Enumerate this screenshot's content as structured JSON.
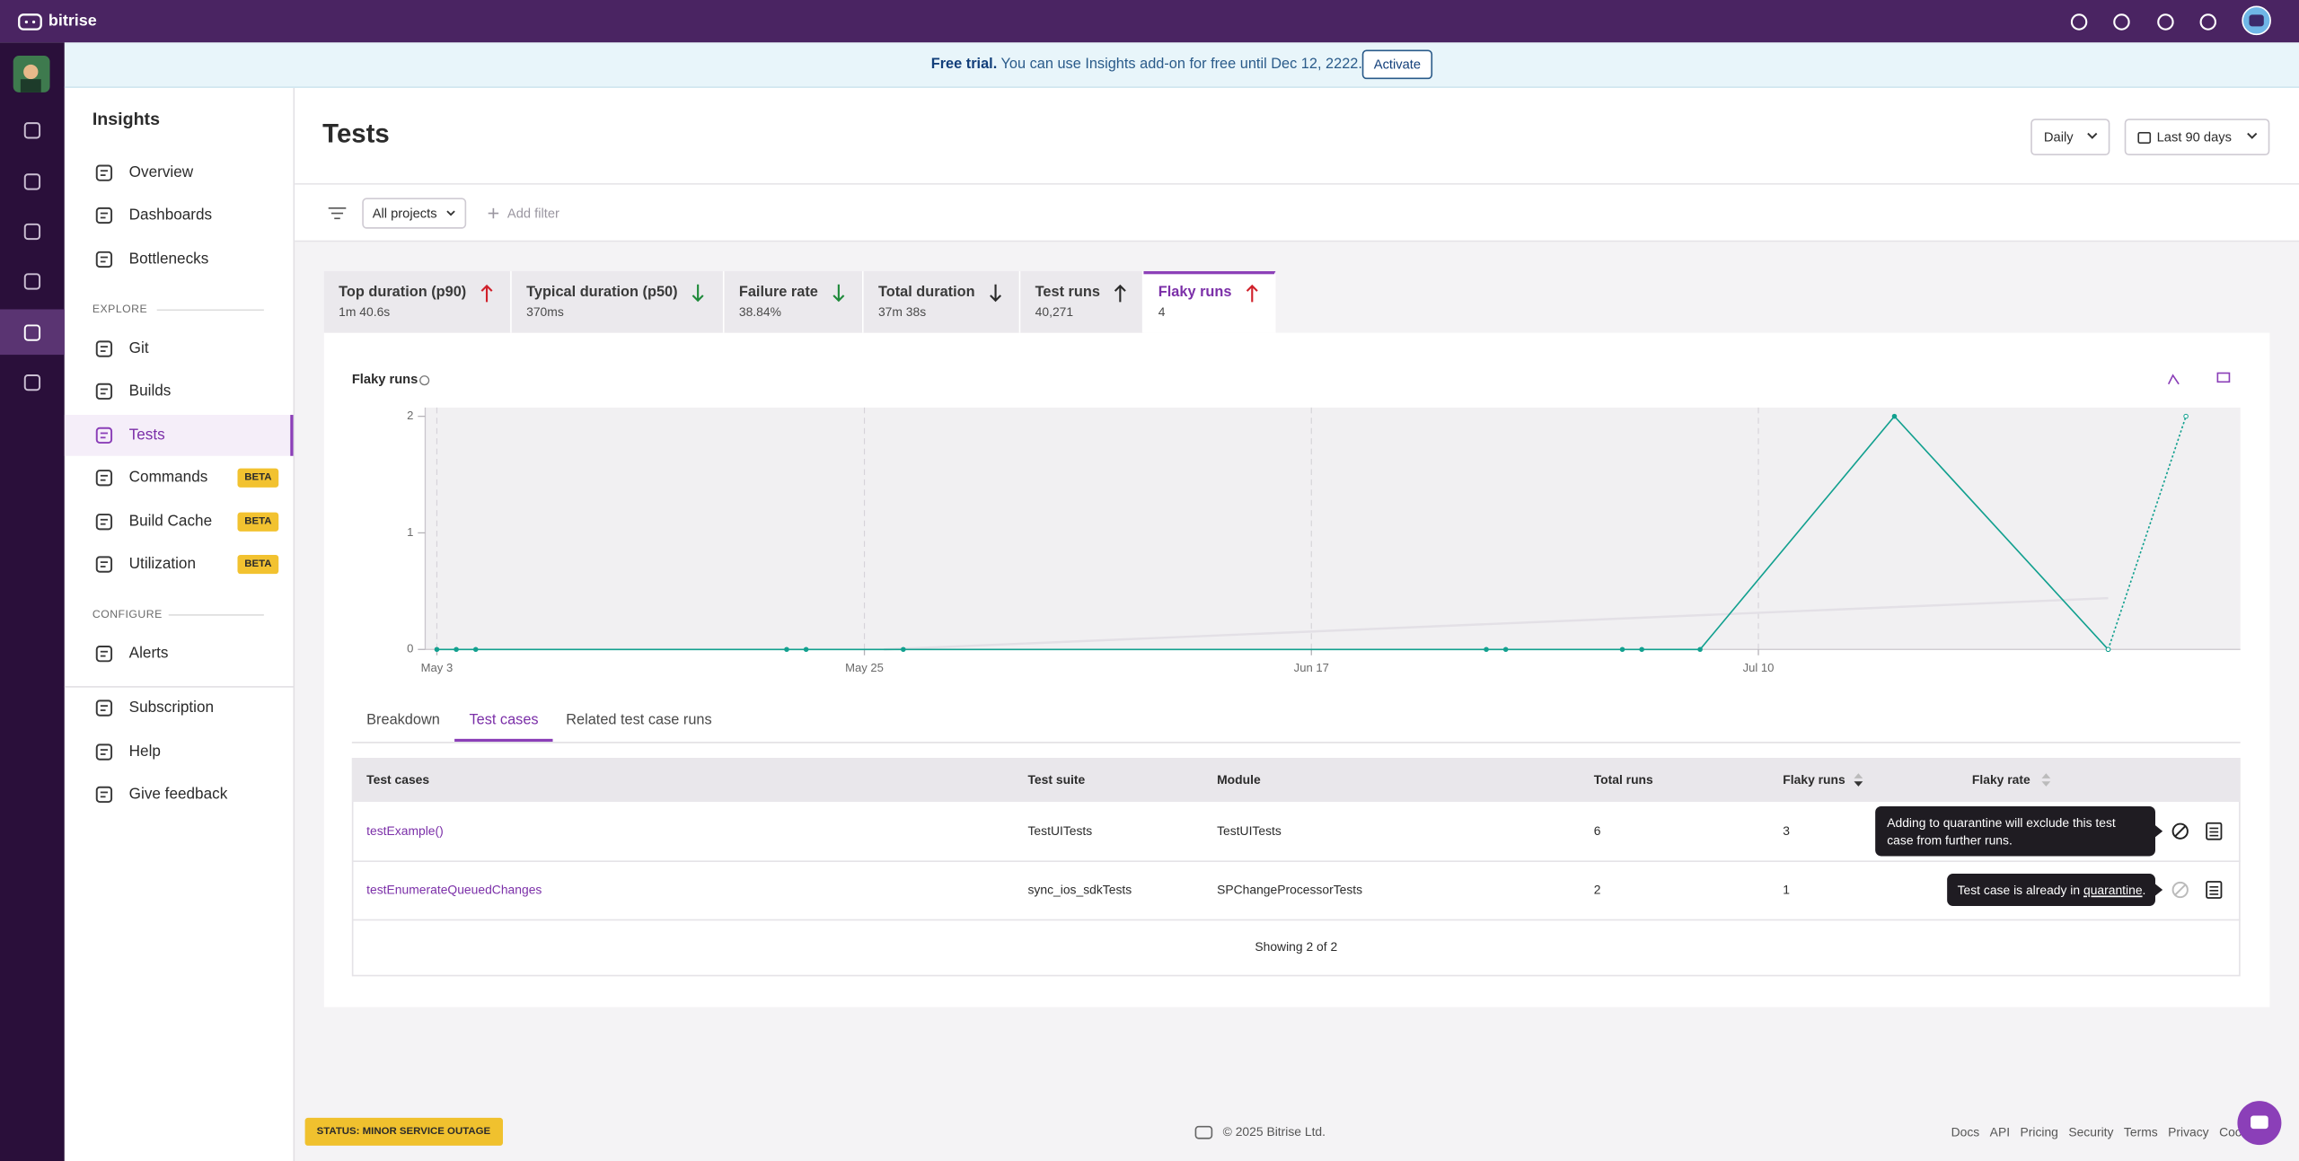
{
  "topbar": {
    "brand": "bitrise"
  },
  "banner": {
    "strong": "Free trial.",
    "text": "You can use Insights add-on for free until Dec 12, 2222.",
    "button": "Activate"
  },
  "sidebar": {
    "title": "Insights",
    "items": [
      {
        "label": "Overview",
        "y": 118
      },
      {
        "label": "Dashboards",
        "y": 147
      },
      {
        "label": "Bottlenecks",
        "y": 176
      }
    ],
    "explore": "EXPLORE",
    "explore_items": [
      {
        "label": "Git"
      },
      {
        "label": "Builds"
      },
      {
        "label": "Tests",
        "active": true
      },
      {
        "label": "Commands",
        "badge": "BETA"
      },
      {
        "label": "Build Cache",
        "badge": "BETA"
      },
      {
        "label": "Utilization",
        "badge": "BETA"
      }
    ],
    "configure": "CONFIGURE",
    "configure_items": [
      {
        "label": "Alerts"
      }
    ],
    "bottom_items": [
      {
        "label": "Subscription"
      },
      {
        "label": "Help"
      },
      {
        "label": "Give feedback"
      }
    ]
  },
  "header": {
    "title": "Tests",
    "interval": "Daily",
    "range": "Last 90 days"
  },
  "filters": {
    "project": "All projects",
    "add": "Add filter"
  },
  "metrics": [
    {
      "label": "Top duration (p90)",
      "value": "1m 40.6s",
      "trend": "up",
      "trend_color": "#d0202a"
    },
    {
      "label": "Typical duration (p50)",
      "value": "370ms",
      "trend": "down",
      "trend_color": "#1f8a3b"
    },
    {
      "label": "Failure rate",
      "value": "38.84%",
      "trend": "down",
      "trend_color": "#1f8a3b"
    },
    {
      "label": "Total duration",
      "value": "37m 38s",
      "trend": "down",
      "trend_color": "#2b2b2b"
    },
    {
      "label": "Test runs",
      "value": "40,271",
      "trend": "up",
      "trend_color": "#2b2b2b"
    },
    {
      "label": "Flaky runs",
      "value": "4",
      "trend": "up",
      "trend_color": "#d0202a",
      "active": true
    }
  ],
  "chart_data": {
    "type": "line",
    "title": "Flaky runs",
    "xlim": [
      -0.6,
      92.8
    ],
    "xticks": [
      {
        "value": 0,
        "label": "May 3"
      },
      {
        "value": 22,
        "label": "May 25"
      },
      {
        "value": 45,
        "label": "Jun 17"
      },
      {
        "value": 68,
        "label": "Jul 10"
      }
    ],
    "ylim": [
      0,
      2.05
    ],
    "yticks": [
      0,
      1,
      2
    ],
    "grid": true,
    "series": [
      {
        "color": "#12a08f",
        "x": [
          0,
          1,
          2,
          18,
          19,
          24,
          54,
          55,
          61,
          62,
          65,
          75,
          86
        ],
        "values": [
          0,
          0,
          0,
          0,
          0,
          0,
          0,
          0,
          0,
          0,
          0,
          2,
          0
        ]
      },
      {
        "color": "#12a08f",
        "dashed": true,
        "x": [
          86,
          90
        ],
        "values": [
          0,
          2
        ]
      },
      {
        "color": "#e3e0e6",
        "x": [
          23,
          86
        ],
        "values": [
          0,
          0.44
        ]
      }
    ]
  },
  "subtabs": [
    {
      "label": "Breakdown"
    },
    {
      "label": "Test cases",
      "active": true
    },
    {
      "label": "Related test case runs"
    }
  ],
  "table": {
    "headers": [
      "Test cases",
      "Test suite",
      "Module",
      "Total runs",
      "Flaky runs",
      "Flaky rate"
    ],
    "rows": [
      [
        "testExample()",
        "TestUITests",
        "TestUITests",
        "6",
        "3"
      ],
      [
        "testEnumerateQueuedChanges",
        "sync_ios_sdkTests",
        "SPChangeProcessorTests",
        "2",
        "1"
      ]
    ],
    "footer": "Showing 2 of 2"
  },
  "tooltips": {
    "first": "Adding to quarantine will exclude this test case  from further runs.",
    "second_text": "Test case is already in ",
    "second_link": "quarantine",
    "second_end": "."
  },
  "status": "STATUS: MINOR SERVICE OUTAGE",
  "footer": {
    "copyright": "© 2025 Bitrise Ltd.",
    "links": [
      "Docs",
      "API",
      "Pricing",
      "Security",
      "Terms",
      "Privacy",
      "Cookie"
    ]
  }
}
